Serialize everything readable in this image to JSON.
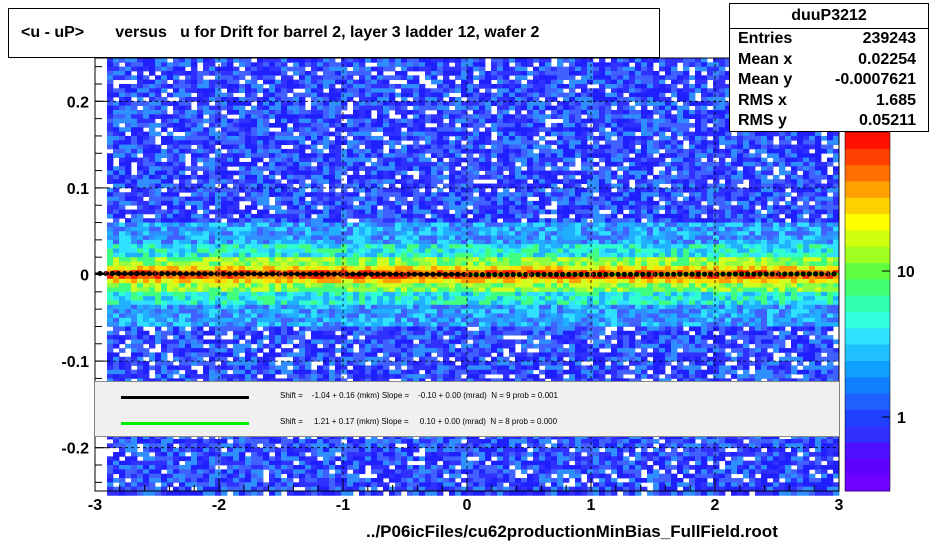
{
  "title": "<u - uP>       versus   u for Drift for barrel 2, layer 3 ladder 12, wafer 2",
  "stats": {
    "name": "duuP3212",
    "rows": [
      {
        "label": "Entries",
        "value": "239243"
      },
      {
        "label": "Mean x",
        "value": "0.02254"
      },
      {
        "label": "Mean y",
        "value": "-0.0007621"
      },
      {
        "label": "RMS x",
        "value": "1.685"
      },
      {
        "label": "RMS y",
        "value": "0.05211"
      }
    ]
  },
  "legend": [
    {
      "text": "Shift =    -1.04 + 0.16 (mkm) Slope =    -0.10 + 0.00 (mrad)  N = 9 prob = 0.001",
      "color": "#000000"
    },
    {
      "text": "Shift =     1.21 + 0.17 (mkm) Slope =     0.10 + 0.00 (mrad)  N = 8 prob = 0.000",
      "color": "#00ff00"
    }
  ],
  "footer": "../P06icFiles/cu62productionMinBias_FullField.root",
  "chart_data": {
    "type": "heatmap",
    "xlim": [
      -3,
      3
    ],
    "ylim": [
      -0.25,
      0.25
    ],
    "x_ticks": [
      "-3",
      "-2",
      "-1",
      "0",
      "1",
      "2",
      "3"
    ],
    "y_ticks": [
      "-0.2",
      "-0.1",
      "0",
      "0.1",
      "0.2"
    ],
    "colorbar_labels": [
      "1",
      "10"
    ],
    "profile_points": [
      {
        "x": -2.9,
        "y": 0.001
      },
      {
        "x": -2.5,
        "y": 0.001
      },
      {
        "x": -2.0,
        "y": 0.001
      },
      {
        "x": -1.5,
        "y": 0.0005
      },
      {
        "x": -1.0,
        "y": 0.0005
      },
      {
        "x": -0.5,
        "y": 0.0003
      },
      {
        "x": 0.0,
        "y": 0.0002
      },
      {
        "x": 0.5,
        "y": 0.0
      },
      {
        "x": 1.0,
        "y": 0.0
      },
      {
        "x": 1.5,
        "y": -0.0003
      },
      {
        "x": 2.0,
        "y": -0.0002
      },
      {
        "x": 2.5,
        "y": 0.0
      },
      {
        "x": 2.9,
        "y": 0.0
      }
    ],
    "fit_lines": [
      {
        "color": "#000000",
        "x": [
          -3,
          0
        ],
        "y": [
          0.0012,
          0.0002
        ]
      },
      {
        "color": "#00ff00",
        "x": [
          0,
          3
        ],
        "y": [
          -0.0002,
          0.0008
        ]
      }
    ]
  }
}
